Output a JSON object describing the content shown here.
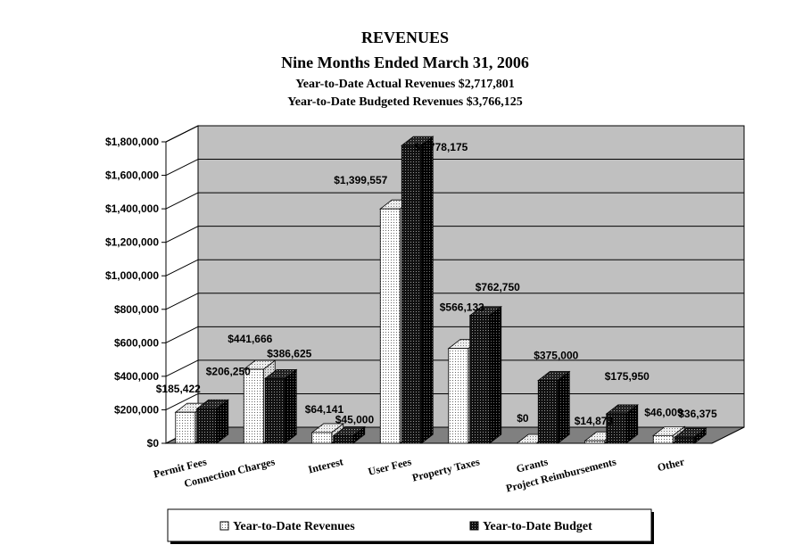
{
  "chart_data": {
    "type": "bar",
    "title": "REVENUES",
    "subtitle": "Nine Months Ended March 31, 2006",
    "subtitle2": "Year-to-Date Actual Revenues $2,717,801",
    "subtitle3": "Year-to-Date Budgeted Revenues $3,766,125",
    "categories": [
      "Permit Fees",
      "Connection Charges",
      "Interest",
      "User Fees",
      "Property Taxes",
      "Grants",
      "Project Reimbursements",
      "Other"
    ],
    "series": [
      {
        "name": "Year-to-Date Revenues",
        "values": [
          185422,
          441666,
          64141,
          1399557,
          566133,
          0,
          14873,
          46009
        ],
        "labels": [
          "$185,422",
          "$441,666",
          "$64,141",
          "$1,399,557",
          "$566,133",
          "$0",
          "$14,873",
          "$46,009"
        ],
        "color": "#ffffff"
      },
      {
        "name": "Year-to-Date Budget",
        "values": [
          206250,
          386625,
          45000,
          1778175,
          762750,
          375000,
          175950,
          36375
        ],
        "labels": [
          "$206,250",
          "$386,625",
          "$45,000",
          "$1,778,175",
          "$762,750",
          "$375,000",
          "$175,950",
          "$36,375"
        ],
        "color": "#111111"
      }
    ],
    "yticks": [
      "$0",
      "$200,000",
      "$400,000",
      "$600,000",
      "$800,000",
      "$1,000,000",
      "$1,200,000",
      "$1,400,000",
      "$1,600,000",
      "$1,800,000"
    ],
    "ylim": [
      0,
      1800000
    ],
    "grid": true,
    "legend": "bottom",
    "wall_color": "#c0c0c0",
    "floor_color": "#808080"
  }
}
